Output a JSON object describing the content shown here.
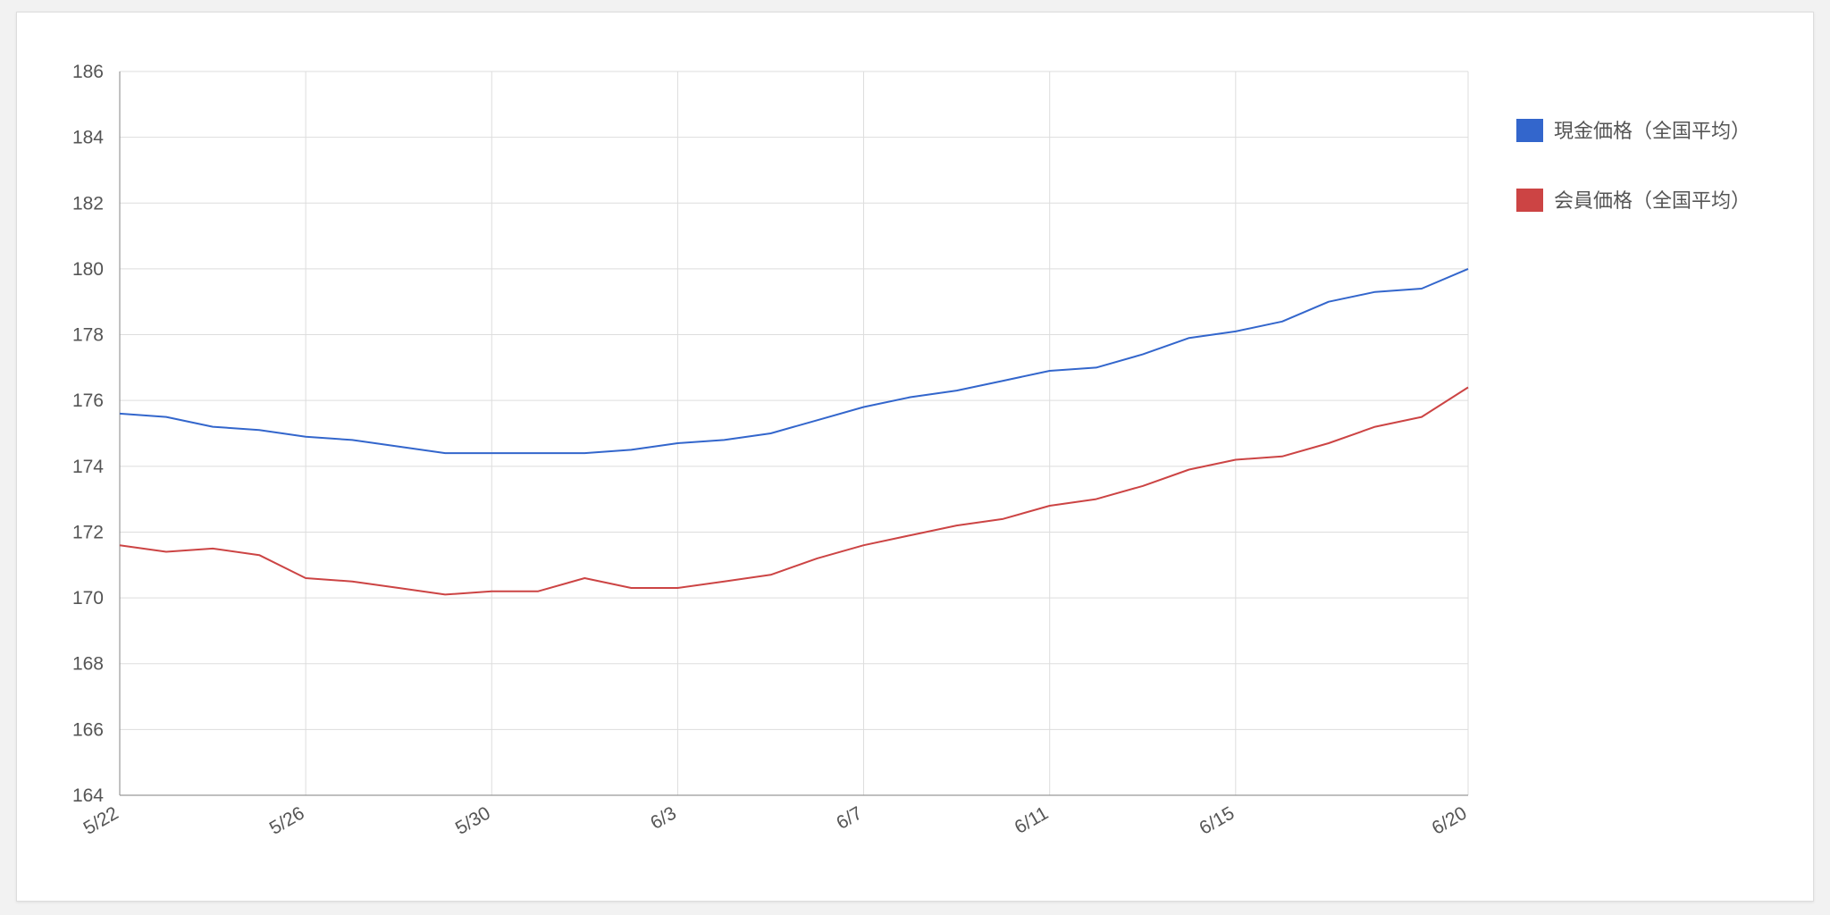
{
  "chart_data": {
    "type": "line",
    "x": [
      "5/22",
      "5/23",
      "5/24",
      "5/25",
      "5/26",
      "5/27",
      "5/28",
      "5/29",
      "5/30",
      "5/31",
      "6/1",
      "6/2",
      "6/3",
      "6/4",
      "6/5",
      "6/6",
      "6/7",
      "6/8",
      "6/9",
      "6/10",
      "6/11",
      "6/12",
      "6/13",
      "6/14",
      "6/15",
      "6/16",
      "6/17",
      "6/18",
      "6/19",
      "6/20"
    ],
    "x_tick_labels": [
      "5/22",
      "5/26",
      "5/30",
      "6/3",
      "6/7",
      "6/11",
      "6/15",
      "6/20"
    ],
    "y_ticks": [
      164,
      166,
      168,
      170,
      172,
      174,
      176,
      178,
      180,
      182,
      184,
      186
    ],
    "ylim": [
      164,
      186
    ],
    "grid": true,
    "legend_position": "right",
    "series": [
      {
        "name": "現金価格（全国平均）",
        "color": "#3366cc",
        "values": [
          175.6,
          175.5,
          175.2,
          175.1,
          174.9,
          174.8,
          174.6,
          174.4,
          174.4,
          174.4,
          174.4,
          174.5,
          174.7,
          174.8,
          175.0,
          175.4,
          175.8,
          176.1,
          176.3,
          176.6,
          176.9,
          177.0,
          177.4,
          177.9,
          178.1,
          178.4,
          179.0,
          179.3,
          179.4,
          180.0
        ]
      },
      {
        "name": "会員価格（全国平均）",
        "color": "#cc4444",
        "values": [
          171.6,
          171.4,
          171.5,
          171.3,
          170.6,
          170.5,
          170.3,
          170.1,
          170.2,
          170.2,
          170.6,
          170.3,
          170.3,
          170.5,
          170.7,
          171.2,
          171.6,
          171.9,
          172.2,
          172.4,
          172.8,
          173.0,
          173.4,
          173.9,
          174.2,
          174.3,
          174.7,
          175.2,
          175.5,
          176.4
        ]
      }
    ]
  }
}
